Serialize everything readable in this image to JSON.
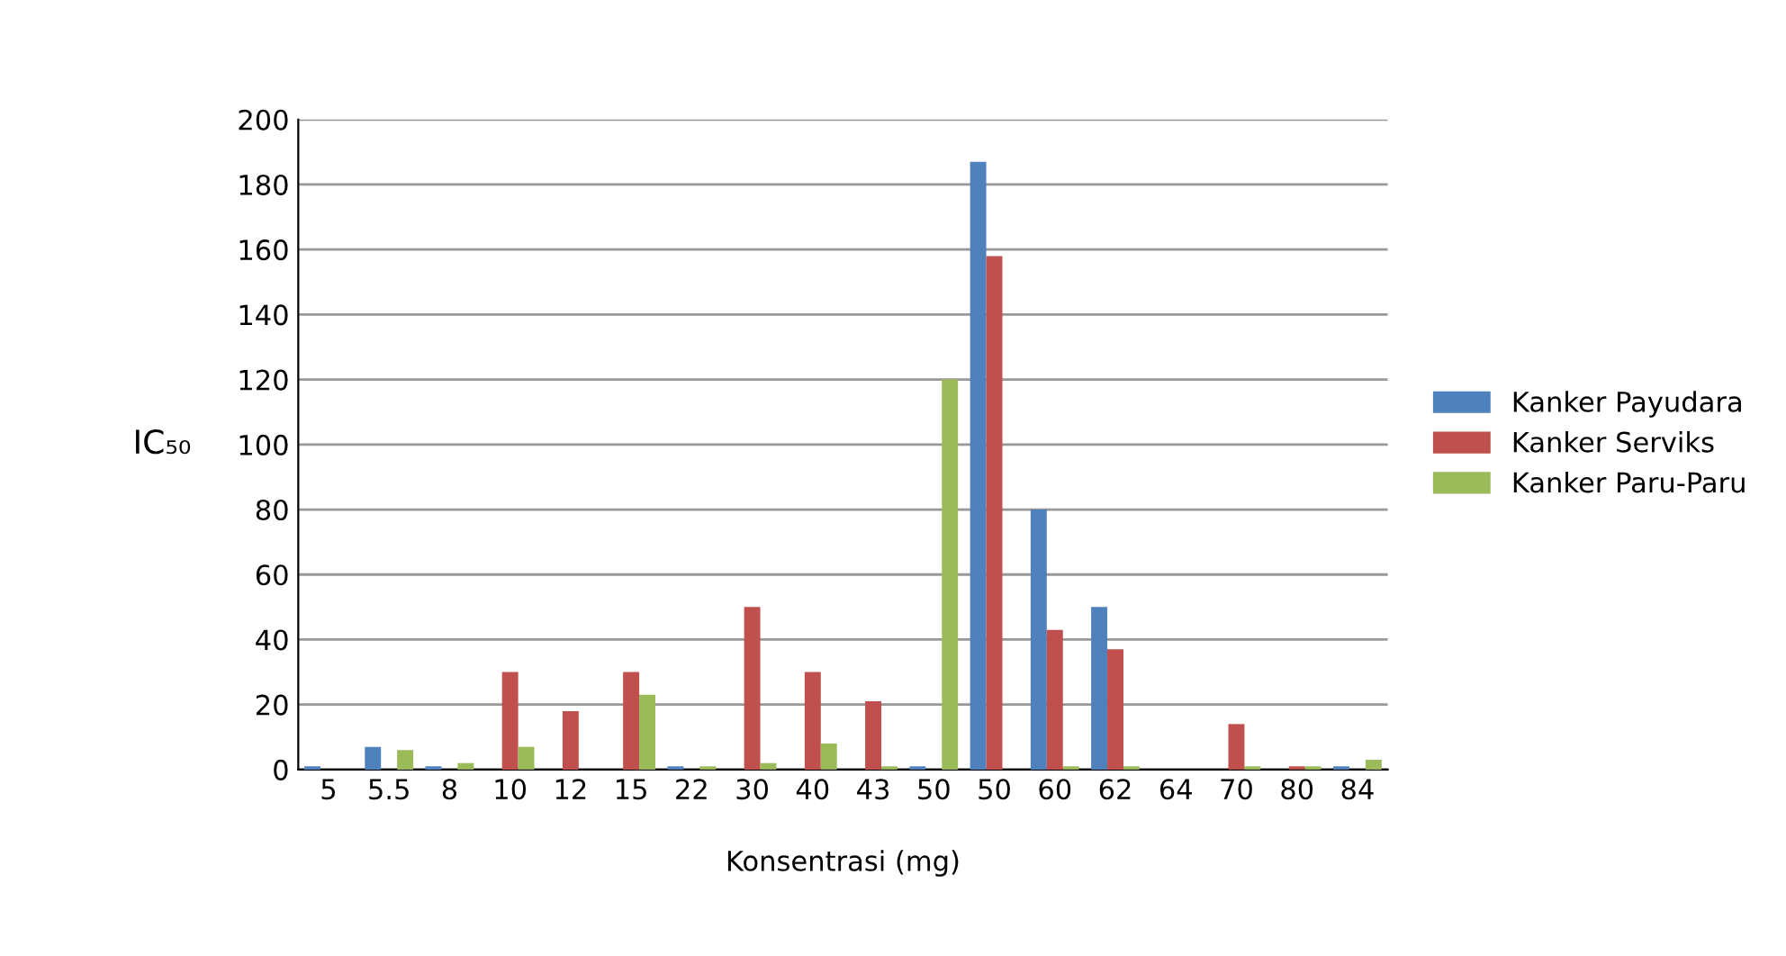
{
  "chart_data": {
    "type": "bar",
    "xlabel": "Konsentrasi (mg)",
    "ylabel": "IC₅₀",
    "categories": [
      "5",
      "5.5",
      "8",
      "10",
      "12",
      "15",
      "22",
      "30",
      "40",
      "43",
      "50",
      "50",
      "60",
      "62",
      "64",
      "70",
      "80",
      "84"
    ],
    "series": [
      {
        "name": "Kanker Payudara",
        "color": "#4f81bd",
        "values": [
          1,
          7,
          1,
          0,
          0,
          0,
          1,
          0,
          0,
          0,
          1,
          187,
          80,
          50,
          0,
          0,
          0,
          1
        ]
      },
      {
        "name": "Kanker Serviks",
        "color": "#c0504d",
        "values": [
          0,
          0,
          0,
          30,
          18,
          30,
          0,
          50,
          30,
          21,
          0,
          158,
          43,
          37,
          0,
          14,
          1,
          0
        ]
      },
      {
        "name": "Kanker Paru-Paru",
        "color": "#9bbb59",
        "values": [
          0,
          6,
          2,
          7,
          0,
          23,
          1,
          2,
          8,
          1,
          120,
          0,
          1,
          1,
          0,
          1,
          1,
          3
        ]
      }
    ],
    "ylim": [
      0,
      200
    ],
    "yticks": [
      0,
      20,
      40,
      60,
      80,
      100,
      120,
      140,
      160,
      180,
      200
    ],
    "grid": "y",
    "legend": "right"
  }
}
